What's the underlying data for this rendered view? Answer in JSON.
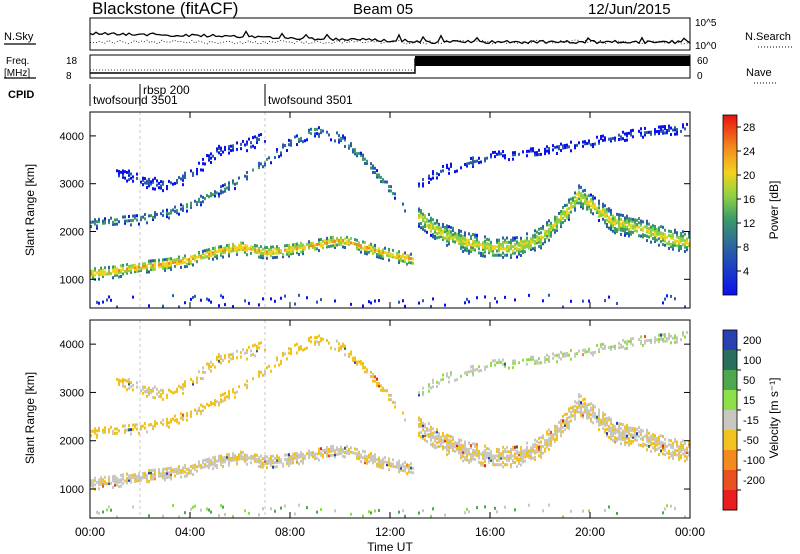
{
  "header": {
    "station": "Blackstone (fitACF)",
    "beam": "Beam 05",
    "date": "12/Jun/2015"
  },
  "summary": {
    "nsky_label": "N.Sky",
    "nsearch_label": "N.Search",
    "nsky_tick_top": "10^5",
    "nsky_tick_bottom": "10^0",
    "freq_label_1": "Freq.",
    "freq_label_2": "[MHz]",
    "freq_ticks": [
      "18",
      "8"
    ],
    "nave_label": "Nave",
    "nave_ticks": [
      "60",
      "0"
    ],
    "cpid_label": "CPID",
    "cpid_segments": [
      {
        "label": "twofsound 3501",
        "t_start": 0.0,
        "t_end": 2.0
      },
      {
        "label": "rbsp 200",
        "t_start": 2.0,
        "t_end": 7.0
      },
      {
        "label": "twofsound 3501",
        "t_start": 7.0,
        "t_end": 24.0
      }
    ],
    "nave_step_time": 13.0
  },
  "panels": {
    "power": {
      "ylabel": "Slant Range [km]",
      "yticks": [
        1000,
        2000,
        3000,
        4000
      ],
      "ylim": [
        400,
        4500
      ],
      "colorbar_label": "Power [dB]",
      "colorbar_ticks": [
        4,
        8,
        12,
        16,
        20,
        24,
        28
      ],
      "colorbar_range": [
        0,
        30
      ]
    },
    "velocity": {
      "ylabel": "Slant Range [km]",
      "yticks": [
        1000,
        2000,
        3000,
        4000
      ],
      "ylim": [
        400,
        4500
      ],
      "colorbar_label": "Velocity [m s⁻¹]",
      "colorbar_ticks": [
        200,
        100,
        50,
        15,
        -15,
        -50,
        -100,
        -200
      ],
      "colorbar_colors": [
        "#2a3fb0",
        "#2a6e5e",
        "#4da84d",
        "#8ee04a",
        "#c8c8c0",
        "#f2c21e",
        "#f28a1e",
        "#e8501e",
        "#e81e1e"
      ]
    }
  },
  "xaxis": {
    "label": "Time UT",
    "ticks": [
      "00:00",
      "04:00",
      "08:00",
      "12:00",
      "16:00",
      "20:00",
      "00:00"
    ],
    "range_hours": [
      0,
      24
    ]
  },
  "chart_data": {
    "type": "heatmap",
    "x_unit": "hours UT",
    "y_unit": "km",
    "bands": [
      {
        "name": "main",
        "points": [
          [
            0,
            1150
          ],
          [
            1,
            1200
          ],
          [
            2,
            1300
          ],
          [
            3,
            1350
          ],
          [
            4,
            1450
          ],
          [
            5,
            1600
          ],
          [
            6,
            1700
          ],
          [
            7,
            1600
          ],
          [
            8,
            1650
          ],
          [
            9,
            1750
          ],
          [
            10,
            1850
          ],
          [
            11,
            1700
          ],
          [
            12,
            1550
          ],
          [
            12.9,
            1450
          ]
        ],
        "width": 260,
        "power": 25,
        "velocity": -5
      },
      {
        "name": "upper-early",
        "points": [
          [
            0,
            2200
          ],
          [
            1,
            2250
          ],
          [
            2,
            2300
          ],
          [
            3,
            2400
          ],
          [
            4,
            2600
          ],
          [
            5,
            2850
          ],
          [
            6,
            3100
          ],
          [
            7,
            3500
          ],
          [
            8,
            3900
          ],
          [
            9,
            4150
          ],
          [
            10,
            4000
          ],
          [
            11,
            3500
          ],
          [
            12,
            2900
          ],
          [
            12.6,
            2500
          ]
        ],
        "width": 220,
        "power": 14,
        "velocity": -30
      },
      {
        "name": "upper-sparse",
        "points": [
          [
            1,
            3300
          ],
          [
            2,
            3100
          ],
          [
            3,
            3000
          ],
          [
            4,
            3200
          ],
          [
            5,
            3700
          ],
          [
            6,
            3800
          ],
          [
            7,
            4000
          ]
        ],
        "width": 250,
        "power": 8,
        "velocity": -20
      },
      {
        "name": "late",
        "points": [
          [
            13,
            2400
          ],
          [
            14,
            2000
          ],
          [
            15,
            1800
          ],
          [
            16,
            1700
          ],
          [
            17,
            1700
          ],
          [
            18,
            1900
          ],
          [
            19,
            2400
          ],
          [
            19.5,
            2800
          ],
          [
            20,
            2600
          ],
          [
            21,
            2200
          ],
          [
            22,
            2100
          ],
          [
            23,
            1900
          ],
          [
            24,
            1800
          ]
        ],
        "width": 420,
        "power": 22,
        "velocity": -8
      },
      {
        "name": "late-upper",
        "points": [
          [
            13,
            3000
          ],
          [
            14,
            3300
          ],
          [
            16,
            3600
          ],
          [
            18,
            3700
          ],
          [
            20,
            3900
          ],
          [
            22,
            4100
          ],
          [
            24,
            4200
          ]
        ],
        "width": 200,
        "power": 8,
        "velocity": 10
      }
    ]
  }
}
